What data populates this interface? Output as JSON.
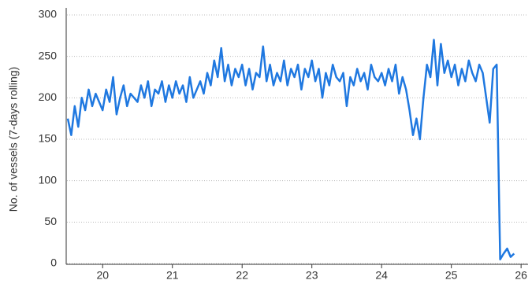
{
  "chart_data": {
    "type": "line",
    "y_label": "No. of vessels (7-days rolling)",
    "x": [
      20,
      20.05,
      20.1,
      20.15,
      20.2,
      20.25,
      20.3,
      20.35,
      20.4,
      20.45,
      20.5,
      20.55,
      20.6,
      20.65,
      20.7,
      20.75,
      20.8,
      20.85,
      20.9,
      20.95,
      21,
      21.05,
      21.1,
      21.15,
      21.2,
      21.25,
      21.3,
      21.35,
      21.4,
      21.45,
      21.5,
      21.55,
      21.6,
      21.65,
      21.7,
      21.75,
      21.8,
      21.85,
      21.9,
      21.95,
      22,
      22.05,
      22.1,
      22.15,
      22.2,
      22.25,
      22.3,
      22.35,
      22.4,
      22.45,
      22.5,
      22.55,
      22.6,
      22.65,
      22.7,
      22.75,
      22.8,
      22.85,
      22.9,
      22.95,
      23,
      23.05,
      23.1,
      23.15,
      23.2,
      23.25,
      23.3,
      23.35,
      23.4,
      23.45,
      23.5,
      23.55,
      23.6,
      23.65,
      23.7,
      23.75,
      23.8,
      23.85,
      23.9,
      23.95,
      24,
      24.05,
      24.1,
      24.15,
      24.2,
      24.25,
      24.3,
      24.35,
      24.4,
      24.45,
      24.5,
      24.55,
      24.6,
      24.65,
      24.7,
      24.75,
      24.8,
      24.85,
      24.9,
      24.95,
      25,
      25.05,
      25.1,
      25.15,
      25.2,
      25.25,
      25.3,
      25.35,
      25.4,
      25.45,
      25.5,
      25.55,
      25.6,
      25.65,
      25.7,
      25.75,
      25.8,
      25.85,
      25.9,
      25.95,
      26,
      26.05,
      26.1,
      26.15,
      26.2,
      26.25,
      26.3,
      26.35,
      26.4
    ],
    "series": [
      {
        "color": "#1f78e0",
        "values": [
          175,
          155,
          190,
          165,
          200,
          185,
          210,
          190,
          205,
          195,
          185,
          210,
          195,
          225,
          180,
          200,
          215,
          190,
          205,
          200,
          195,
          215,
          200,
          220,
          190,
          210,
          205,
          220,
          195,
          215,
          200,
          220,
          205,
          215,
          195,
          225,
          200,
          210,
          220,
          205,
          230,
          215,
          245,
          225,
          260,
          220,
          240,
          215,
          235,
          225,
          240,
          215,
          235,
          210,
          230,
          225,
          262,
          220,
          240,
          215,
          230,
          220,
          245,
          215,
          235,
          225,
          240,
          210,
          235,
          225,
          245,
          220,
          235,
          200,
          230,
          215,
          240,
          225,
          220,
          230,
          190,
          225,
          215,
          235,
          220,
          230,
          210,
          240,
          225,
          220,
          230,
          215,
          235,
          220,
          240,
          205,
          225,
          210,
          185,
          155,
          175,
          150,
          200,
          240,
          225,
          270,
          215,
          265,
          230,
          245,
          225,
          240,
          215,
          235,
          220,
          245,
          230,
          220,
          240,
          230,
          200,
          170,
          235,
          240,
          5,
          12,
          18,
          8,
          12
        ]
      }
    ],
    "xlim": [
      20,
      26.6
    ],
    "xticks": [
      {
        "value": 20.5,
        "label": "20"
      },
      {
        "value": 21.5,
        "label": "21"
      },
      {
        "value": 22.5,
        "label": "22"
      },
      {
        "value": 23.5,
        "label": "23"
      },
      {
        "value": 24.5,
        "label": "24"
      },
      {
        "value": 25.5,
        "label": "25"
      },
      {
        "value": 26.5,
        "label": "26"
      }
    ],
    "ylim": [
      0,
      300
    ],
    "yticks": [
      0,
      50,
      100,
      150,
      200,
      250,
      300
    ],
    "grid": true
  }
}
